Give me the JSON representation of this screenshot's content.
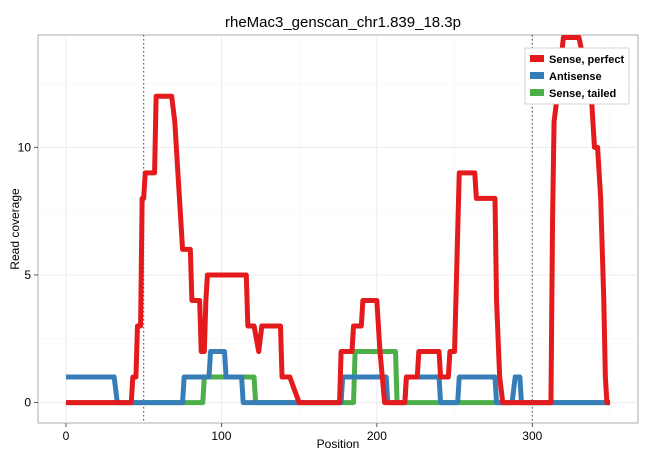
{
  "chart_data": {
    "type": "line",
    "title": "rheMac3_genscan_chr1.839_18.3p",
    "xlabel": "Position",
    "ylabel": "Read coverage",
    "xlim": [
      -18,
      368
    ],
    "ylim": [
      -0.8,
      14.4
    ],
    "x_ticks": [
      0,
      100,
      200,
      300
    ],
    "y_ticks": [
      0,
      5,
      10
    ],
    "grid": true,
    "legend_position": "top-right",
    "vlines": [
      50,
      300
    ],
    "series": [
      {
        "name": "Sense, perfect",
        "color": "#e41a1c",
        "points": [
          [
            0,
            0
          ],
          [
            42,
            0
          ],
          [
            43,
            1
          ],
          [
            45,
            1
          ],
          [
            46,
            3
          ],
          [
            48,
            3
          ],
          [
            49,
            8
          ],
          [
            50,
            8
          ],
          [
            51,
            9
          ],
          [
            57,
            9
          ],
          [
            58,
            12
          ],
          [
            68,
            12
          ],
          [
            70,
            11
          ],
          [
            71,
            10
          ],
          [
            72,
            9
          ],
          [
            74,
            7
          ],
          [
            75,
            6
          ],
          [
            80,
            6
          ],
          [
            81,
            4
          ],
          [
            86,
            4
          ],
          [
            87,
            2
          ],
          [
            89,
            2
          ],
          [
            90,
            4
          ],
          [
            91,
            5
          ],
          [
            116,
            5
          ],
          [
            117,
            3
          ],
          [
            121,
            3
          ],
          [
            124,
            2
          ],
          [
            126,
            3
          ],
          [
            138,
            3
          ],
          [
            139,
            1
          ],
          [
            144,
            1
          ],
          [
            150,
            0
          ],
          [
            176,
            0
          ],
          [
            177,
            2
          ],
          [
            184,
            2
          ],
          [
            185,
            3
          ],
          [
            190,
            3
          ],
          [
            191,
            4
          ],
          [
            200,
            4
          ],
          [
            201,
            3
          ],
          [
            202,
            2
          ],
          [
            205,
            0
          ],
          [
            218,
            0
          ],
          [
            219,
            1
          ],
          [
            226,
            1
          ],
          [
            227,
            2
          ],
          [
            240,
            2
          ],
          [
            241,
            1
          ],
          [
            246,
            1
          ],
          [
            247,
            2
          ],
          [
            250,
            2
          ],
          [
            253,
            9
          ],
          [
            263,
            9
          ],
          [
            264,
            8
          ],
          [
            276,
            8
          ],
          [
            277,
            4
          ],
          [
            279,
            1
          ],
          [
            281,
            0
          ],
          [
            312,
            0
          ],
          [
            313,
            7
          ],
          [
            314,
            11
          ],
          [
            316,
            12
          ],
          [
            320,
            14.3
          ],
          [
            330,
            14.3
          ],
          [
            338,
            12
          ],
          [
            340,
            10
          ],
          [
            342,
            10
          ],
          [
            344,
            8
          ],
          [
            346,
            4
          ],
          [
            347,
            1
          ],
          [
            348,
            0
          ],
          [
            350,
            0
          ]
        ]
      },
      {
        "name": "Antisense",
        "color": "#377eb8",
        "points": [
          [
            0,
            1
          ],
          [
            31,
            1
          ],
          [
            33,
            0
          ],
          [
            75,
            0
          ],
          [
            76,
            1
          ],
          [
            92,
            1
          ],
          [
            93,
            2
          ],
          [
            102,
            2
          ],
          [
            103,
            1
          ],
          [
            113,
            1
          ],
          [
            114,
            0
          ],
          [
            177,
            0
          ],
          [
            178,
            1
          ],
          [
            206,
            1
          ],
          [
            207,
            0
          ],
          [
            218,
            0
          ],
          [
            219,
            1
          ],
          [
            240,
            1
          ],
          [
            241,
            0
          ],
          [
            252,
            0
          ],
          [
            253,
            1
          ],
          [
            276,
            1
          ],
          [
            277,
            0
          ],
          [
            287,
            0
          ],
          [
            289,
            1
          ],
          [
            292,
            1
          ],
          [
            293,
            0
          ],
          [
            350,
            0
          ]
        ]
      },
      {
        "name": "Sense, tailed",
        "color": "#4daf4a",
        "points": [
          [
            0,
            0
          ],
          [
            88,
            0
          ],
          [
            89,
            1
          ],
          [
            121,
            1
          ],
          [
            122,
            0
          ],
          [
            185,
            0
          ],
          [
            186,
            2
          ],
          [
            212,
            2
          ],
          [
            213,
            0
          ],
          [
            350,
            0
          ]
        ]
      }
    ]
  }
}
